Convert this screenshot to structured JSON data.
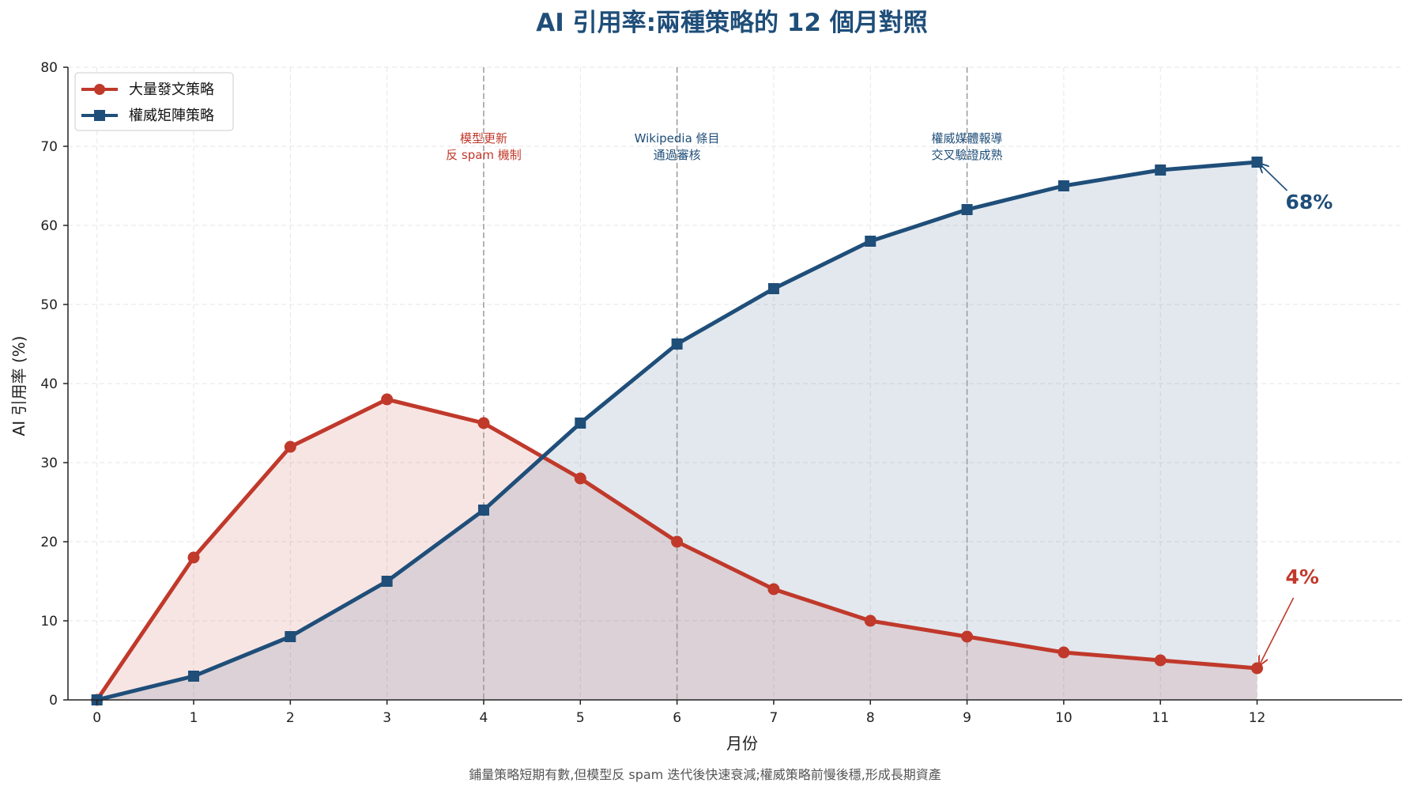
{
  "chart_data": {
    "type": "line",
    "title": "AI 引用率:兩種策略的 12 個月對照",
    "xlabel": "月份",
    "ylabel": "AI 引用率 (%)",
    "caption": "鋪量策略短期有數,但模型反 spam 迭代後快速衰減;權威策略前慢後穩,形成長期資產",
    "x": [
      0,
      1,
      2,
      3,
      4,
      5,
      6,
      7,
      8,
      9,
      10,
      11,
      12
    ],
    "xlim": [
      -0.3,
      13.5
    ],
    "ylim": [
      0,
      80
    ],
    "yticks": [
      0,
      10,
      20,
      30,
      40,
      50,
      60,
      70,
      80
    ],
    "grid": true,
    "legend_position": "top-left",
    "series": [
      {
        "name": "大量發文策略",
        "values": [
          0,
          18,
          32,
          38,
          35,
          28,
          20,
          14,
          10,
          8,
          6,
          5,
          4
        ],
        "color": "#c0392b",
        "fill": "#f6e1e1",
        "marker": "circle"
      },
      {
        "name": "權威矩陣策略",
        "values": [
          0,
          3,
          8,
          15,
          24,
          35,
          45,
          52,
          58,
          62,
          65,
          67,
          68
        ],
        "color": "#1f4e79",
        "fill": "#e2e8ef",
        "marker": "square"
      }
    ],
    "events": [
      {
        "x": 4,
        "lines": [
          "模型更新",
          "反 spam 機制"
        ],
        "color": "#c0392b"
      },
      {
        "x": 6,
        "lines": [
          "Wikipedia 條目",
          "通過審核"
        ],
        "color": "#1f4e79"
      },
      {
        "x": 9,
        "lines": [
          "權威媒體報導",
          "交叉驗證成熟"
        ],
        "color": "#1f4e79"
      }
    ],
    "end_labels": [
      {
        "text": "68%",
        "series": 1,
        "color": "#1f4e79"
      },
      {
        "text": "4%",
        "series": 0,
        "color": "#c0392b"
      }
    ]
  }
}
